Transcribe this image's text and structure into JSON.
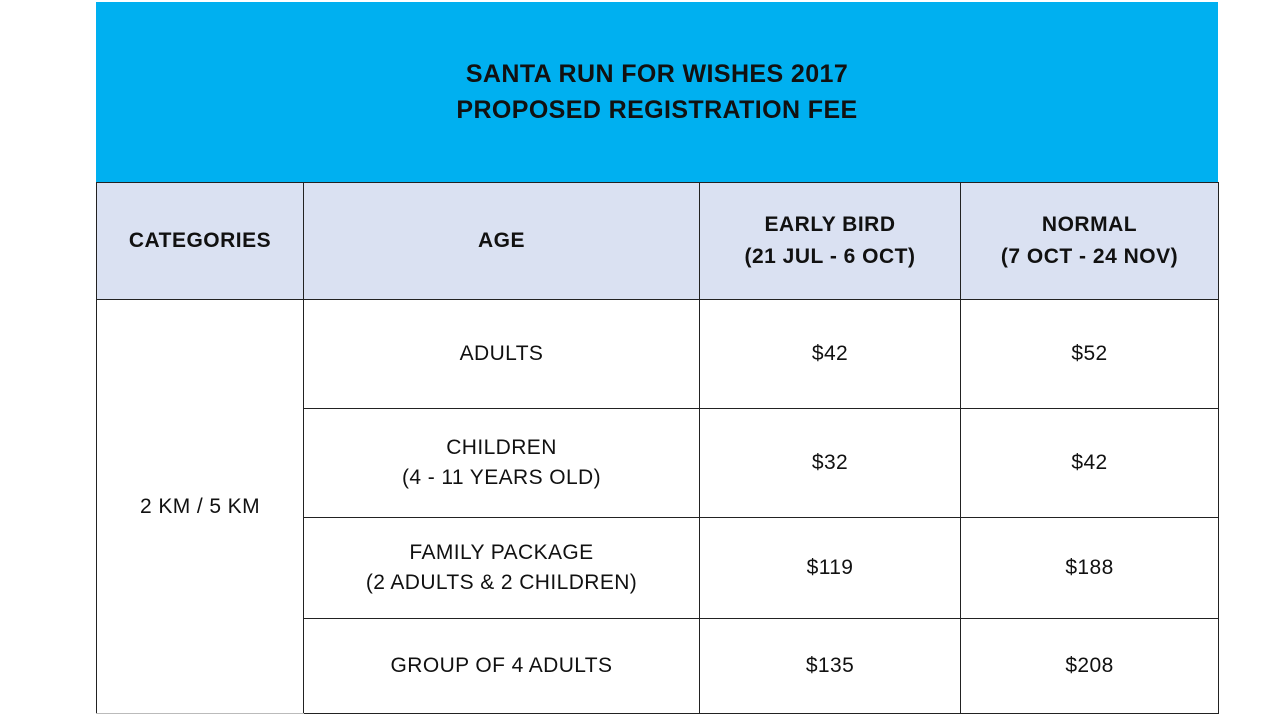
{
  "banner": {
    "title_line1": "SANTA RUN FOR WISHES 2017",
    "title_line2": "PROPOSED REGISTRATION FEE",
    "color": "#00b0f0"
  },
  "table": {
    "header_bg": "#dae1f2",
    "headers": {
      "categories": "CATEGORIES",
      "age": "AGE",
      "early_bird_line1": "EARLY BIRD",
      "early_bird_line2": "(21 JUL - 6 OCT)",
      "normal_line1": "NORMAL",
      "normal_line2": "(7 OCT - 24 NOV)"
    },
    "category": "2 KM / 5 KM",
    "rows": [
      {
        "age_line1": "ADULTS",
        "age_line2": "",
        "early_bird": "$42",
        "normal": "$52"
      },
      {
        "age_line1": "CHILDREN",
        "age_line2": "(4 - 11 YEARS OLD)",
        "early_bird": "$32",
        "normal": "$42"
      },
      {
        "age_line1": "FAMILY PACKAGE",
        "age_line2": "(2 ADULTS & 2 CHILDREN)",
        "early_bird": "$119",
        "normal": "$188"
      },
      {
        "age_line1": "GROUP OF 4 ADULTS",
        "age_line2": "",
        "early_bird": "$135",
        "normal": "$208"
      }
    ]
  }
}
